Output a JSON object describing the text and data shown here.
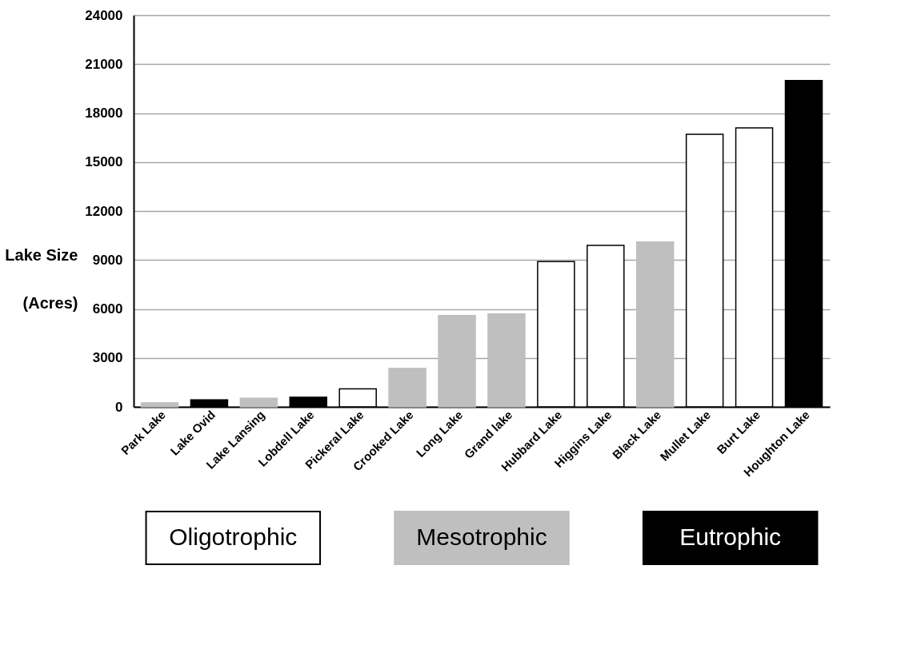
{
  "chart_data": {
    "type": "bar",
    "ylabel": "Lake Size\n(Acres)",
    "categories": [
      "Park Lake",
      "Lake Ovid",
      "Lake Lansing",
      "Lobdell Lake",
      "Pickeral Lake",
      "Crooked Lake",
      "Long Lake",
      "Grand lake",
      "Hubbard Lake",
      "Higgins Lake",
      "Black Lake",
      "Mullet Lake",
      "Burt Lake",
      "Houghton Lake"
    ],
    "series": [
      {
        "name": "Oligotrophic",
        "color": "#ffffff",
        "values": [
          null,
          null,
          null,
          null,
          1100,
          null,
          null,
          null,
          8900,
          9900,
          null,
          16700,
          17100,
          null
        ]
      },
      {
        "name": "Mesotrophic",
        "color": "#bfbfbf",
        "values": [
          250,
          null,
          530,
          null,
          null,
          2350,
          5600,
          5700,
          null,
          null,
          10100,
          null,
          null,
          null
        ]
      },
      {
        "name": "Eutrophic",
        "color": "#000000",
        "values": [
          null,
          430,
          null,
          590,
          null,
          null,
          null,
          null,
          null,
          null,
          null,
          null,
          null,
          20000
        ]
      }
    ],
    "ylim": [
      0,
      24000
    ],
    "yticks": [
      0,
      3000,
      6000,
      9000,
      12000,
      15000,
      18000,
      21000,
      24000
    ],
    "grid": "y",
    "legend": "bottom"
  }
}
